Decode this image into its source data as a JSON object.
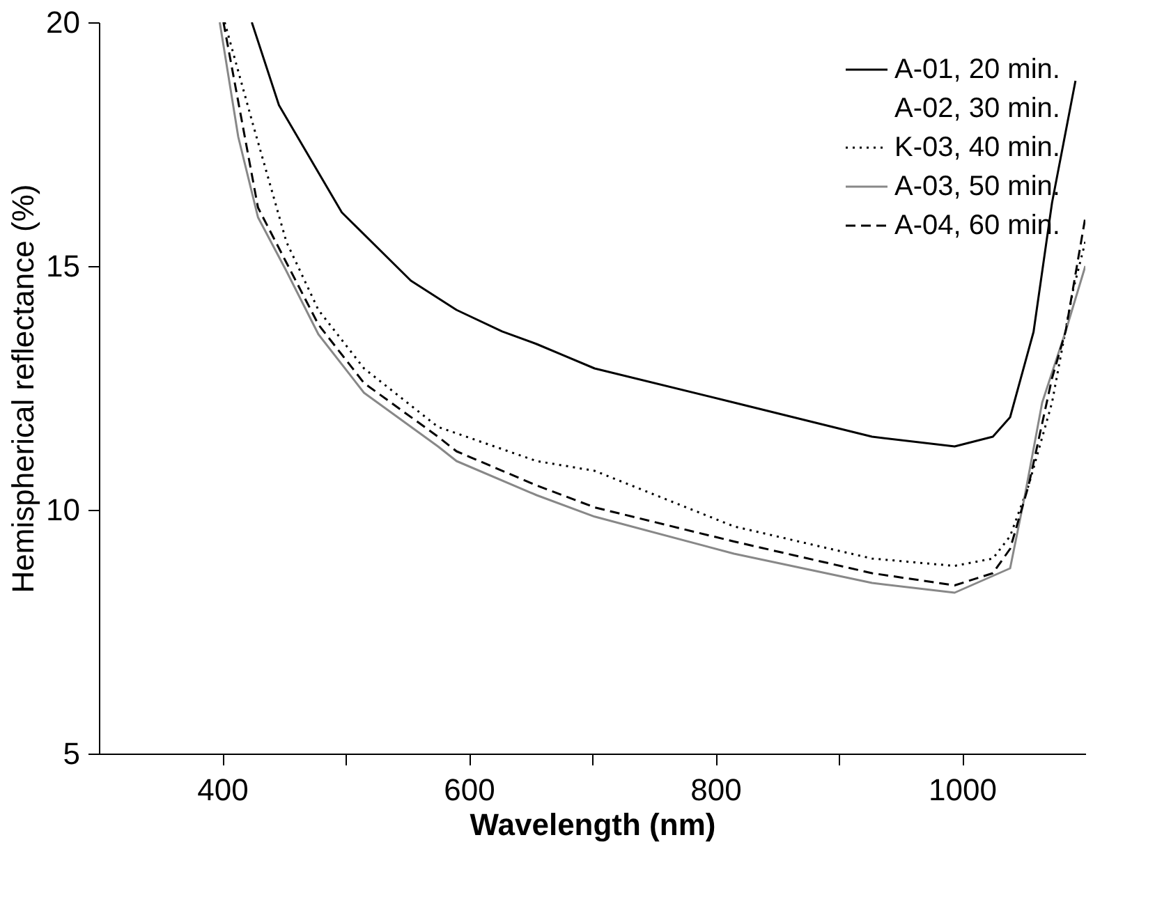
{
  "chart_data": {
    "type": "line",
    "xlabel": "Wavelength (nm)",
    "ylabel": "Hemispherical reflectance (%)",
    "xlim": [
      300,
      1100
    ],
    "ylim": [
      5,
      20
    ],
    "xticks": [
      400,
      {
        "value": 500,
        "label": null
      },
      600,
      {
        "value": 700,
        "label": null
      },
      800,
      {
        "value": 900,
        "label": null
      },
      1000
    ],
    "yticks": [
      5,
      10,
      15,
      20
    ],
    "grid": false,
    "legend": "top right",
    "marker": "none",
    "series": [
      {
        "name": "A-01, 20 min.",
        "color": "#000000",
        "line_style": "solid",
        "x": [
          424,
          446,
          497,
          553,
          590,
          627,
          655,
          702,
          815,
          927,
          994,
          1025,
          1039,
          1058,
          1073,
          1092
        ],
        "values": [
          20,
          18.3,
          16.1,
          14.7,
          14.1,
          13.66,
          13.4,
          12.9,
          12.2,
          11.5,
          11.3,
          11.5,
          11.9,
          13.65,
          16.3,
          18.8
        ]
      },
      {
        "name": "A-02, 30 min."
      },
      {
        "name": "K-03, 40 min.",
        "color": "#000000",
        "line_style": "dotted",
        "x": [
          402,
          425,
          452,
          478,
          515,
          575,
          655,
          702,
          815,
          927,
          994,
          1025,
          1039,
          1054,
          1073,
          1090,
          1100
        ],
        "values": [
          20,
          17.9,
          15.5,
          14.1,
          12.9,
          11.7,
          11.0,
          10.8,
          9.66,
          9.0,
          8.85,
          9.0,
          9.46,
          10.5,
          12.2,
          14.5,
          15.5
        ]
      },
      {
        "name": "A-03, 50 min.",
        "color": "#888888",
        "line_style": "solid",
        "x": [
          398,
          413,
          429,
          452,
          478,
          515,
          575,
          590,
          655,
          702,
          815,
          927,
          994,
          1039,
          1051,
          1065,
          1084,
          1100
        ],
        "values": [
          20,
          17.65,
          16.0,
          14.9,
          13.6,
          12.4,
          11.3,
          11.0,
          10.3,
          9.86,
          9.1,
          8.5,
          8.3,
          8.8,
          10.3,
          12.2,
          13.66,
          15.0
        ]
      },
      {
        "name": "A-04, 60 min.",
        "color": "#000000",
        "line_style": "dashed",
        "x": [
          401,
          429,
          478,
          515,
          575,
          590,
          655,
          702,
          815,
          927,
          994,
          1025,
          1039,
          1054,
          1073,
          1084,
          1100
        ],
        "values": [
          20,
          16.2,
          13.8,
          12.6,
          11.5,
          11.2,
          10.5,
          10.05,
          9.35,
          8.7,
          8.45,
          8.7,
          9.2,
          10.5,
          12.7,
          13.66,
          16.0
        ]
      }
    ]
  }
}
